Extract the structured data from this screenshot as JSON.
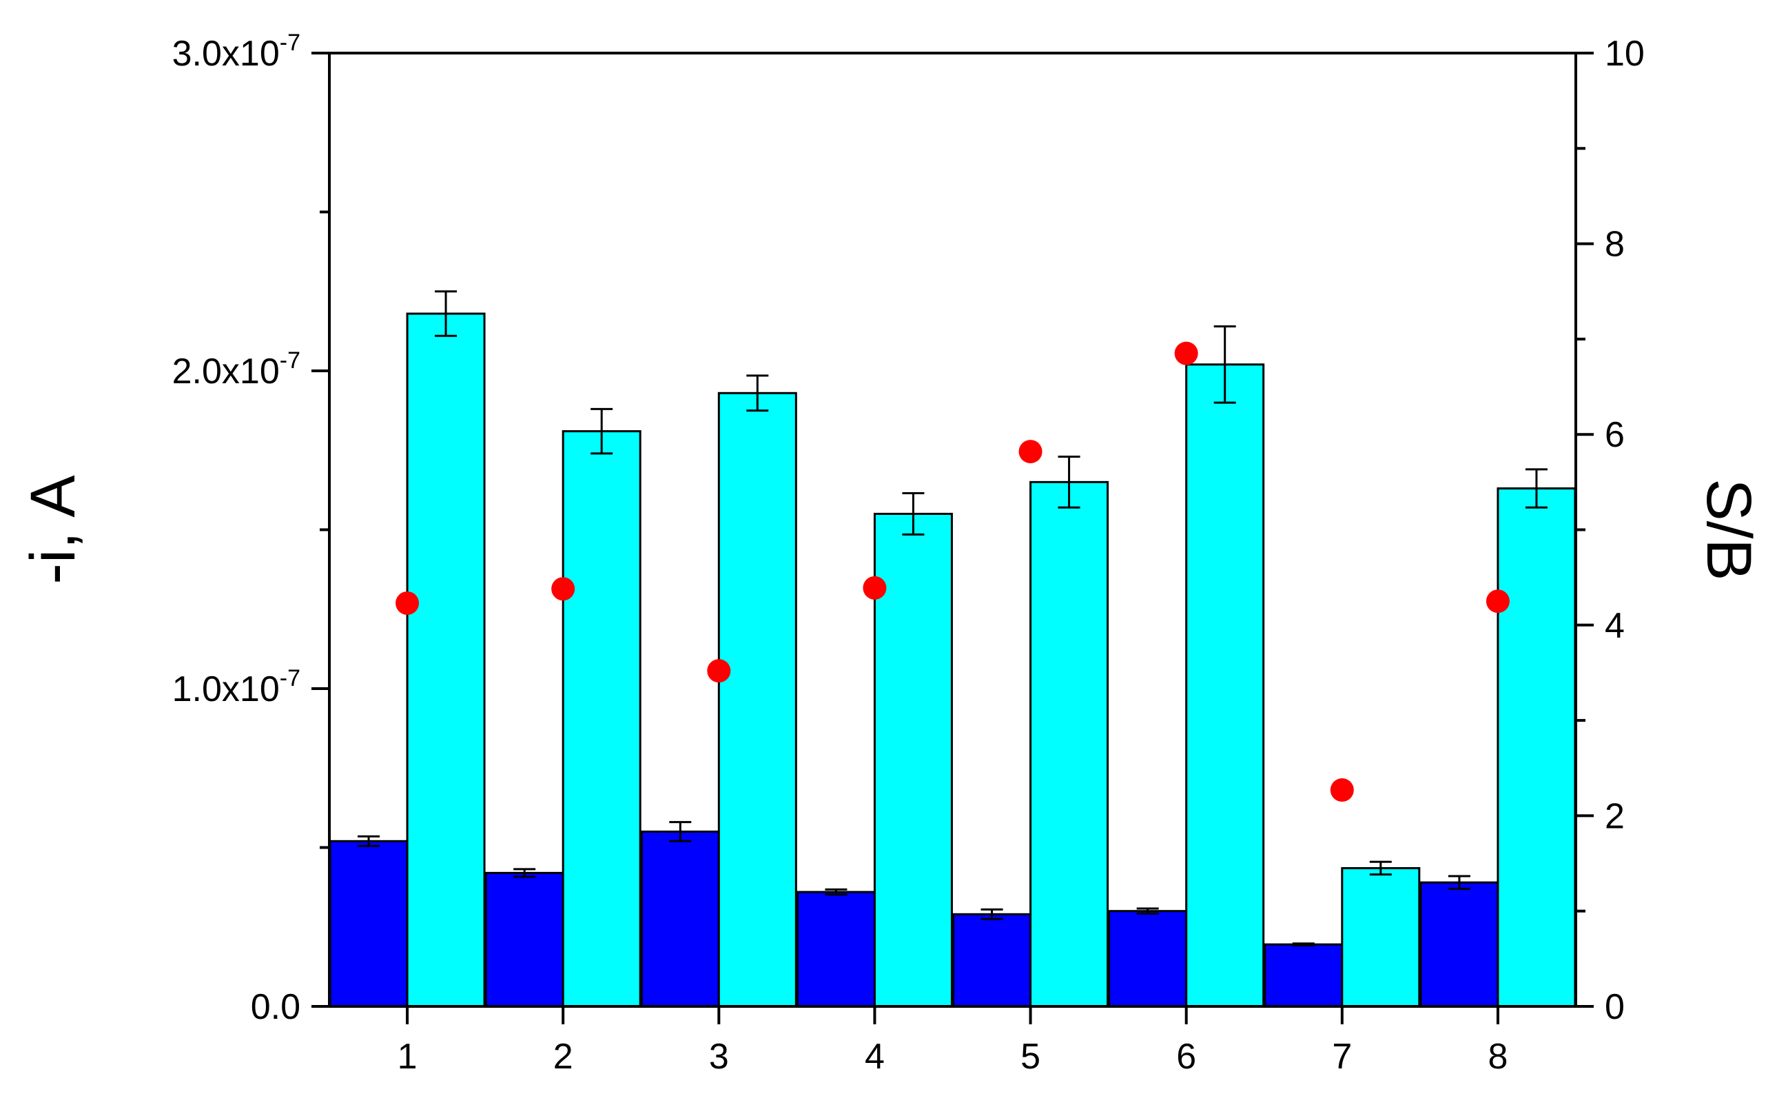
{
  "chart_data": {
    "type": "bar",
    "categories": [
      "1",
      "2",
      "3",
      "4",
      "5",
      "6",
      "7",
      "8"
    ],
    "series": [
      {
        "axis": "left",
        "color": "#0000FF",
        "values": [
          5.2e-08,
          4.2e-08,
          5.5e-08,
          3.6e-08,
          2.9e-08,
          3e-08,
          1.95e-08,
          3.9e-08
        ],
        "errors": [
          1.5e-09,
          1.2e-09,
          3e-09,
          8e-10,
          1.5e-09,
          8e-10,
          3e-10,
          2e-09
        ]
      },
      {
        "axis": "left",
        "color": "#00FFFF",
        "values": [
          2.18e-07,
          1.81e-07,
          1.93e-07,
          1.55e-07,
          1.65e-07,
          2.02e-07,
          4.35e-08,
          1.63e-07
        ],
        "errors": [
          7e-09,
          7e-09,
          5.5e-09,
          6.5e-09,
          8e-09,
          1.2e-08,
          2e-09,
          6e-09
        ]
      },
      {
        "type": "scatter",
        "axis": "right",
        "color": "#FF0000",
        "values": [
          4.23,
          4.38,
          3.52,
          4.39,
          5.82,
          6.85,
          2.27,
          4.25
        ]
      }
    ],
    "ylabel": "-i, A",
    "y2label": "S/B",
    "ylim": [
      0,
      3e-07
    ],
    "y2lim": [
      0,
      10
    ],
    "yticks": [
      {
        "value": 0,
        "mantissa": "0.0",
        "exp": ""
      },
      {
        "value": 1e-07,
        "mantissa": "1.0x10",
        "exp": "-7"
      },
      {
        "value": 2e-07,
        "mantissa": "2.0x10",
        "exp": "-7"
      },
      {
        "value": 3e-07,
        "mantissa": "3.0x10",
        "exp": "-7"
      }
    ],
    "y2ticks": [
      "0",
      "2",
      "4",
      "6",
      "8",
      "10"
    ],
    "grid": false,
    "legend": "none"
  }
}
